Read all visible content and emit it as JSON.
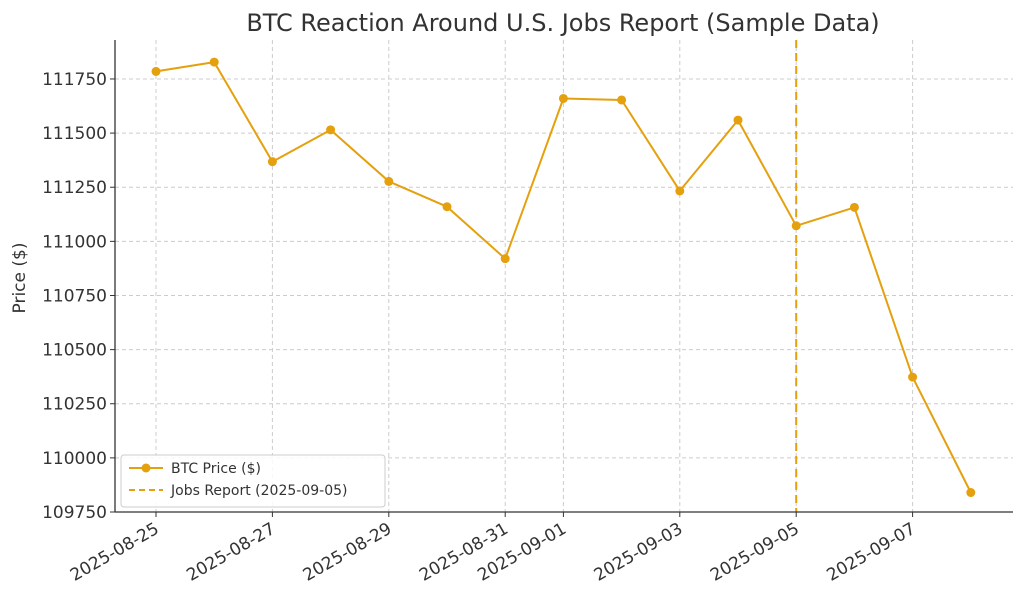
{
  "chart_data": {
    "type": "line",
    "title": "BTC Reaction Around U.S. Jobs Report (Sample Data)",
    "xlabel": "",
    "ylabel": "Price ($)",
    "x_ticks": [
      "2025-08-25",
      "2025-08-27",
      "2025-08-29",
      "2025-08-31",
      "2025-09-01",
      "2025-09-03",
      "2025-09-05",
      "2025-09-07"
    ],
    "y_ticks": [
      109750,
      110000,
      110250,
      110500,
      110750,
      111000,
      111250,
      111500,
      111750
    ],
    "ylim": [
      109750,
      111930
    ],
    "grid": true,
    "legend_position": "lower-left",
    "series": [
      {
        "name": "BTC Price ($)",
        "color": "#E5A00D",
        "x": [
          "2025-08-25",
          "2025-08-26",
          "2025-08-27",
          "2025-08-28",
          "2025-08-29",
          "2025-08-30",
          "2025-08-31",
          "2025-09-01",
          "2025-09-02",
          "2025-09-03",
          "2025-09-04",
          "2025-09-05",
          "2025-09-06",
          "2025-09-07",
          "2025-09-08"
        ],
        "values": [
          111785,
          111828,
          111368,
          111515,
          111277,
          111160,
          110920,
          111660,
          111653,
          111233,
          111560,
          111072,
          111157,
          110373,
          109840
        ]
      }
    ],
    "annotations": [
      {
        "name": "Jobs Report (2025-09-05)",
        "type": "vline",
        "x": "2025-09-05",
        "color": "#E5A00D",
        "style": "dashed"
      }
    ]
  }
}
